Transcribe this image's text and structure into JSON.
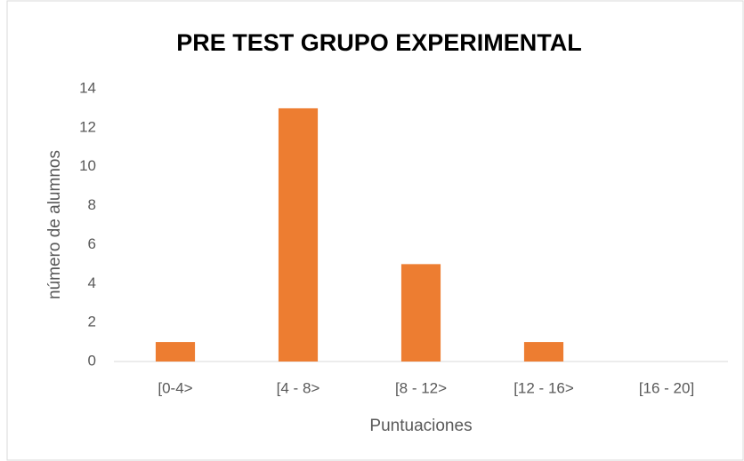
{
  "chart_data": {
    "type": "bar",
    "title": "PRE TEST GRUPO EXPERIMENTAL",
    "x_label": "Puntuaciones",
    "y_label": "número de alumnos",
    "categories": [
      "[0-4>",
      "[4 - 8>",
      "[8 - 12>",
      "[12 - 16>",
      "[16 - 20]"
    ],
    "values": [
      1,
      13,
      5,
      1,
      0
    ],
    "color": "#ed7d31",
    "ylim": [
      0,
      14
    ],
    "yticks": [
      0,
      2,
      4,
      6,
      8,
      10,
      12,
      14
    ],
    "grid": false
  }
}
